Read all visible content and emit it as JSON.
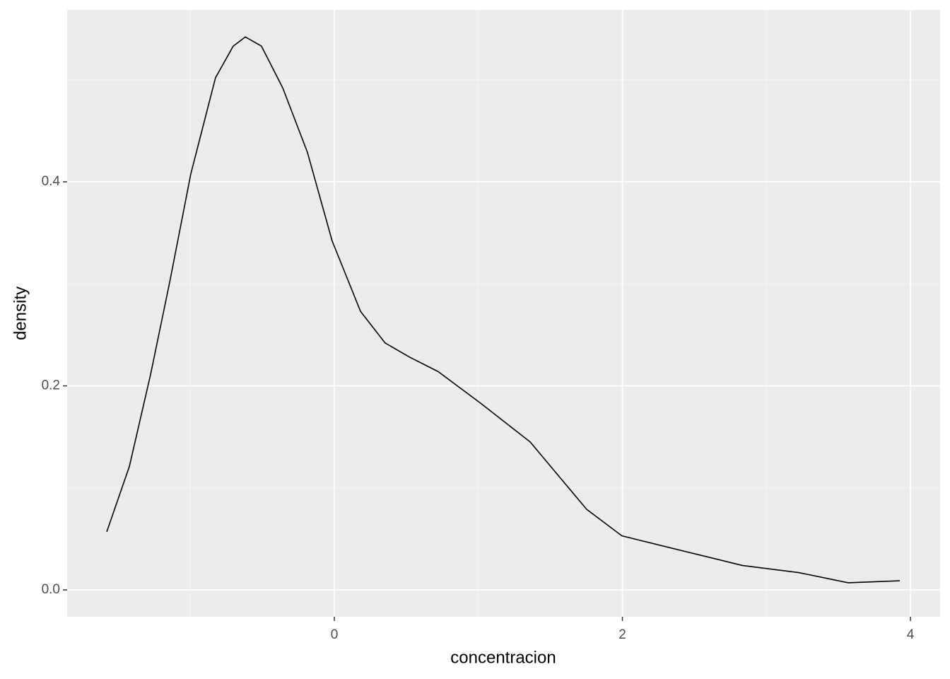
{
  "chart_data": {
    "type": "line",
    "x_label": "concentracion",
    "y_label": "density",
    "x": [
      -1.58,
      -1.423,
      -1.276,
      -1.144,
      -0.996,
      -0.825,
      -0.702,
      -0.618,
      -0.506,
      -0.358,
      -0.187,
      -0.015,
      0.182,
      0.353,
      0.525,
      0.721,
      1.016,
      1.36,
      1.752,
      1.997,
      2.341,
      2.832,
      3.224,
      3.568,
      3.926
    ],
    "values": [
      0.057,
      0.121,
      0.211,
      0.301,
      0.408,
      0.502,
      0.533,
      0.542,
      0.533,
      0.492,
      0.429,
      0.342,
      0.273,
      0.242,
      0.228,
      0.214,
      0.183,
      0.145,
      0.079,
      0.053,
      0.041,
      0.024,
      0.017,
      0.007,
      0.009
    ],
    "color": "#000000",
    "xlim": [
      -1.855,
      4.206
    ],
    "ylim": [
      -0.0263,
      0.5685
    ],
    "xticks": [
      0,
      2,
      4
    ],
    "yticks": [
      {
        "value": 0,
        "label": "0.0"
      },
      {
        "value": 0.2,
        "label": "0.2"
      },
      {
        "value": 0.4,
        "label": "0.4"
      }
    ],
    "x_minor_breaks": [
      -1,
      1,
      3
    ],
    "y_minor_breaks": [
      0.1,
      0.3,
      0.5
    ],
    "grid": true
  }
}
